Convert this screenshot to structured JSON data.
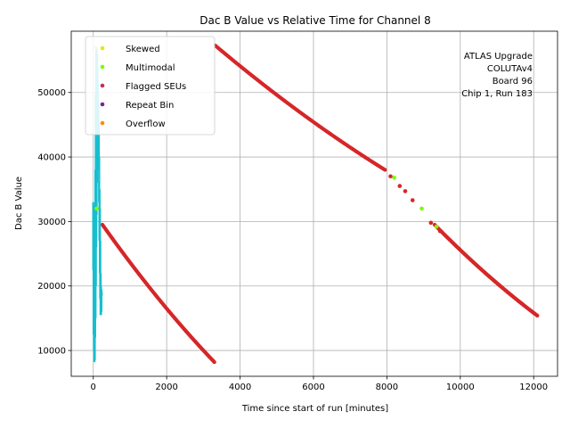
{
  "chart_data": {
    "type": "scatter",
    "title": "Dac B Value vs Relative Time for Channel 8",
    "xlabel": "Time since start of run [minutes]",
    "ylabel": "Dac B Value",
    "xlim": [
      -600,
      12650
    ],
    "ylim": [
      6000,
      59500
    ],
    "xticks": [
      0,
      2000,
      4000,
      6000,
      8000,
      10000,
      12000
    ],
    "yticks": [
      10000,
      20000,
      30000,
      40000,
      50000
    ],
    "xtick_labels": [
      "0",
      "2000",
      "4000",
      "6000",
      "8000",
      "10000",
      "12000"
    ],
    "ytick_labels": [
      "10000",
      "20000",
      "30000",
      "40000",
      "50000"
    ],
    "grid": true,
    "legend_position": "top-left",
    "annotation": [
      "ATLAS Upgrade",
      "COLUTAv4",
      "Board 96",
      "Chip 1, Run 183"
    ],
    "colors": {
      "main": "#d62728",
      "skewed": "#17becf",
      "skewed_marker": "#e5e519",
      "multimodal": "#7cfc00",
      "flagged": "#c2305a",
      "repeat": "#7a1fa0",
      "overflow": "#ff8c00",
      "grid": "#b0b0b0"
    },
    "series": [
      {
        "name": "Flagged SEUs",
        "kind": "red-segments",
        "segments": [
          {
            "x": [
              250,
              3300
            ],
            "y": [
              29500,
              8200
            ]
          },
          {
            "x": [
              3320,
              7950
            ],
            "y": [
              57300,
              38000
            ]
          },
          {
            "x": [
              9300,
              12100
            ],
            "y": [
              29500,
              15400
            ]
          }
        ]
      },
      {
        "name": "Skewed",
        "kind": "cyan-strip",
        "x": [
          0,
          10,
          20,
          30,
          40,
          50,
          60,
          70,
          80,
          90,
          100,
          110,
          120,
          130,
          140,
          150,
          160,
          170,
          180,
          190,
          200,
          210,
          220,
          230
        ],
        "y_min": [
          22500,
          12500,
          10000,
          8200,
          8500,
          12000,
          15000,
          20000,
          26000,
          31000,
          36000,
          40000,
          44000,
          48000,
          44000,
          38000,
          33000,
          27000,
          22000,
          18000,
          15500,
          15500,
          16000,
          18500
        ],
        "y_max": [
          33000,
          32500,
          30000,
          25000,
          20000,
          28000,
          38000,
          50000,
          56500,
          57000,
          56000,
          54000,
          52000,
          49000,
          48000,
          45000,
          40000,
          35000,
          32000,
          27000,
          22000,
          20000,
          19500,
          19000
        ]
      },
      {
        "name": "Multimodal",
        "kind": "points",
        "points": [
          {
            "x": 90,
            "y": 32000
          },
          {
            "x": 8200,
            "y": 36800
          },
          {
            "x": 8950,
            "y": 32000
          },
          {
            "x": 9350,
            "y": 29200
          }
        ]
      },
      {
        "name": "Flagged SEUs",
        "kind": "points",
        "points": [
          {
            "x": 8100,
            "y": 37000
          },
          {
            "x": 8350,
            "y": 35500
          },
          {
            "x": 8500,
            "y": 34700
          },
          {
            "x": 8700,
            "y": 33300
          },
          {
            "x": 9200,
            "y": 29800
          },
          {
            "x": 9450,
            "y": 28500
          }
        ]
      }
    ],
    "legend": [
      {
        "label": "Skewed",
        "color": "#e5e519"
      },
      {
        "label": "Multimodal",
        "color": "#7cfc00"
      },
      {
        "label": "Flagged SEUs",
        "color": "#c2305a"
      },
      {
        "label": "Repeat Bin",
        "color": "#7a1fa0"
      },
      {
        "label": "Overflow",
        "color": "#ff8c00"
      }
    ]
  }
}
